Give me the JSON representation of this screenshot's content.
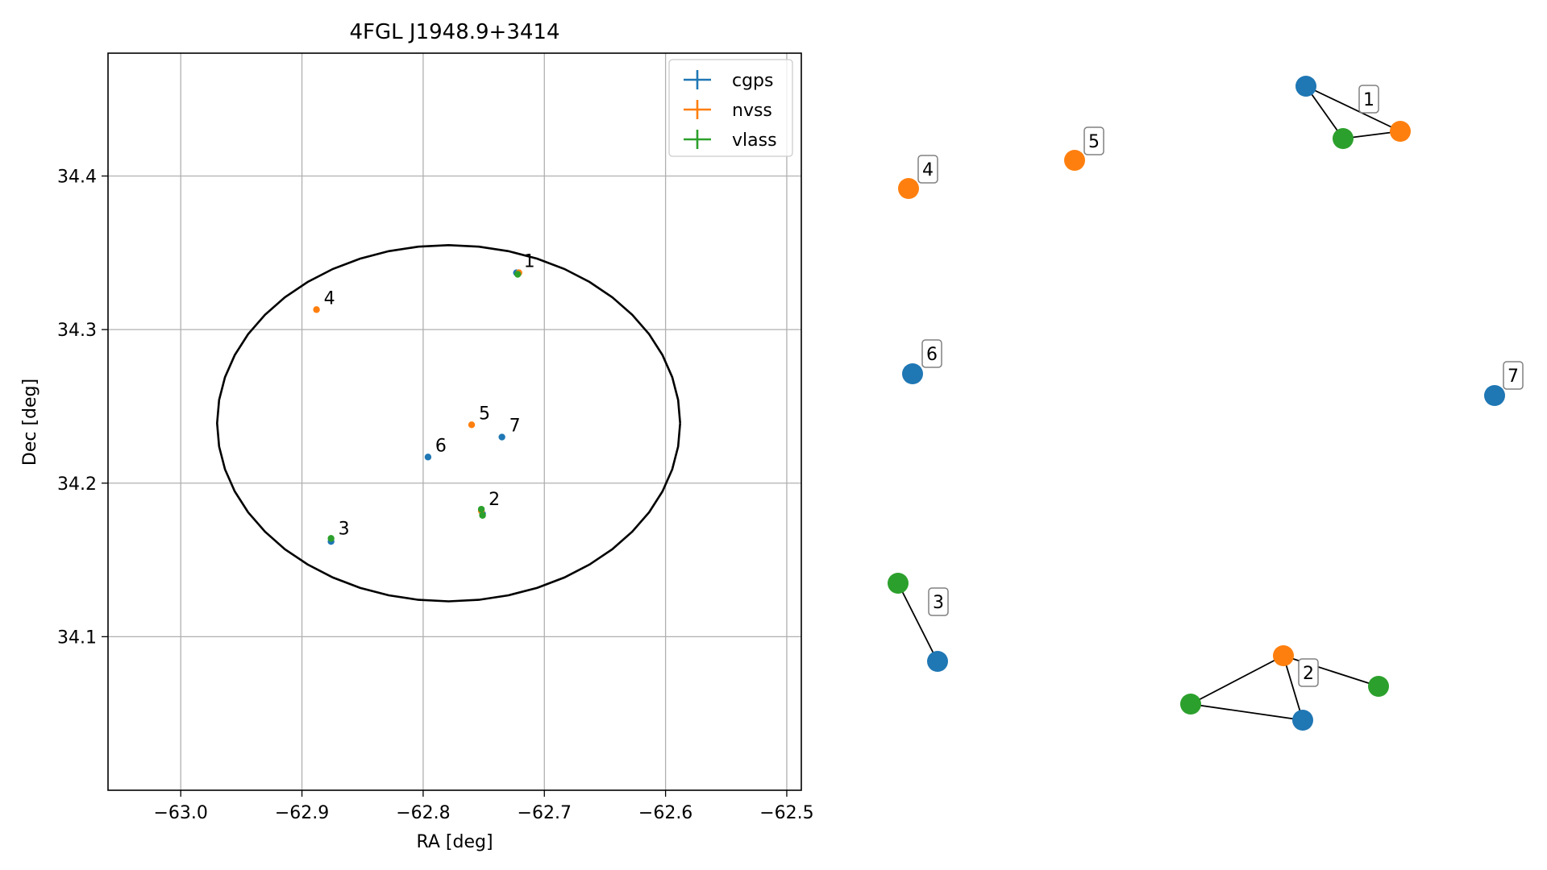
{
  "chart_data": [
    {
      "type": "scatter",
      "title": "4FGL J1948.9+3414",
      "xlabel": "RA [deg]",
      "ylabel": "Dec [deg]",
      "xlim": [
        -63.06,
        -62.488
      ],
      "ylim": [
        34.0,
        34.48
      ],
      "x_ticks": [
        -63.0,
        -62.9,
        -62.8,
        -62.7,
        -62.6,
        -62.5
      ],
      "x_tick_labels": [
        "−63.0",
        "−62.9",
        "−62.8",
        "−62.7",
        "−62.6",
        "−62.5"
      ],
      "y_ticks": [
        34.1,
        34.2,
        34.3,
        34.4
      ],
      "y_tick_labels": [
        "34.1",
        "34.2",
        "34.3",
        "34.4"
      ],
      "grid": true,
      "legend_position": "top-right",
      "series": [
        {
          "name": "cgps",
          "color": "#1f77b4",
          "points": [
            {
              "x": -62.723,
              "y": 34.337
            },
            {
              "x": -62.751,
              "y": 34.18
            },
            {
              "x": -62.876,
              "y": 34.162
            },
            {
              "x": -62.796,
              "y": 34.217
            },
            {
              "x": -62.735,
              "y": 34.23
            }
          ]
        },
        {
          "name": "nvss",
          "color": "#ff7f0e",
          "points": [
            {
              "x": -62.721,
              "y": 34.337
            },
            {
              "x": -62.752,
              "y": 34.182
            },
            {
              "x": -62.888,
              "y": 34.313
            },
            {
              "x": -62.76,
              "y": 34.238
            }
          ]
        },
        {
          "name": "vlass",
          "color": "#2ca02c",
          "points": [
            {
              "x": -62.722,
              "y": 34.336
            },
            {
              "x": -62.752,
              "y": 34.183
            },
            {
              "x": -62.751,
              "y": 34.179
            },
            {
              "x": -62.876,
              "y": 34.164
            }
          ]
        }
      ],
      "annotations": [
        {
          "text": "1",
          "x": -62.723,
          "y": 34.337
        },
        {
          "text": "2",
          "x": -62.752,
          "y": 34.182
        },
        {
          "text": "3",
          "x": -62.876,
          "y": 34.163
        },
        {
          "text": "4",
          "x": -62.888,
          "y": 34.313
        },
        {
          "text": "5",
          "x": -62.76,
          "y": 34.238
        },
        {
          "text": "6",
          "x": -62.796,
          "y": 34.217
        },
        {
          "text": "7",
          "x": -62.735,
          "y": 34.23
        }
      ],
      "ellipse": {
        "center_x": -62.779,
        "center_y": 34.239,
        "semi_axis_x": 0.191,
        "semi_axis_y": 0.116,
        "color": "#000000"
      }
    },
    {
      "type": "network",
      "groups": [
        {
          "label": "1",
          "nodes": [
            {
              "survey": "cgps"
            },
            {
              "survey": "vlass"
            },
            {
              "survey": "nvss"
            }
          ],
          "edges": [
            [
              0,
              1
            ],
            [
              0,
              2
            ],
            [
              1,
              2
            ]
          ]
        },
        {
          "label": "2",
          "nodes": [
            {
              "survey": "nvss"
            },
            {
              "survey": "vlass"
            },
            {
              "survey": "vlass"
            },
            {
              "survey": "cgps"
            }
          ],
          "edges": [
            [
              0,
              1
            ],
            [
              0,
              2
            ],
            [
              0,
              3
            ],
            [
              2,
              3
            ]
          ]
        },
        {
          "label": "3",
          "nodes": [
            {
              "survey": "vlass"
            },
            {
              "survey": "cgps"
            }
          ],
          "edges": [
            [
              0,
              1
            ]
          ]
        },
        {
          "label": "4",
          "nodes": [
            {
              "survey": "nvss"
            }
          ],
          "edges": []
        },
        {
          "label": "5",
          "nodes": [
            {
              "survey": "nvss"
            }
          ],
          "edges": []
        },
        {
          "label": "6",
          "nodes": [
            {
              "survey": "cgps"
            }
          ],
          "edges": []
        },
        {
          "label": "7",
          "nodes": [
            {
              "survey": "cgps"
            }
          ],
          "edges": []
        }
      ],
      "survey_colors": {
        "cgps": "#1f77b4",
        "nvss": "#ff7f0e",
        "vlass": "#2ca02c"
      }
    }
  ]
}
